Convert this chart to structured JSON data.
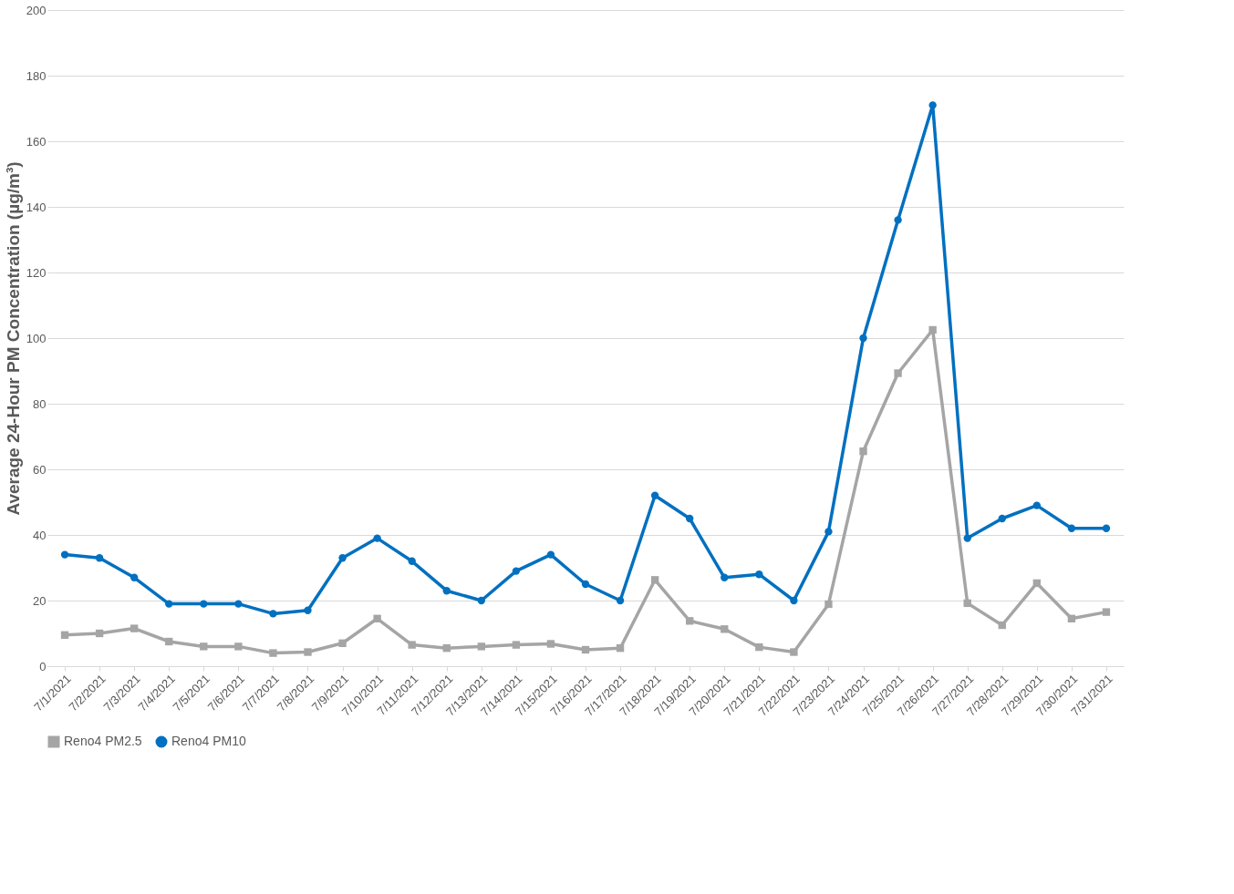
{
  "chart_data": {
    "type": "line",
    "ylabel": "Average 24-Hour PM Concentration (µg/m³)",
    "categories": [
      "7/1/2021",
      "7/2/2021",
      "7/3/2021",
      "7/4/2021",
      "7/5/2021",
      "7/6/2021",
      "7/7/2021",
      "7/8/2021",
      "7/9/2021",
      "7/10/2021",
      "7/11/2021",
      "7/12/2021",
      "7/13/2021",
      "7/14/2021",
      "7/15/2021",
      "7/16/2021",
      "7/17/2021",
      "7/18/2021",
      "7/19/2021",
      "7/20/2021",
      "7/21/2021",
      "7/22/2021",
      "7/23/2021",
      "7/24/2021",
      "7/25/2021",
      "7/26/2021",
      "7/27/2021",
      "7/28/2021",
      "7/29/2021",
      "7/30/2021",
      "7/31/2021"
    ],
    "series": [
      {
        "name": "Reno4 PM2.5",
        "color": "#a5a5a5",
        "marker": "square",
        "values": [
          9.5,
          10,
          11.5,
          7.5,
          6,
          6,
          4,
          4.3,
          7,
          14.5,
          6.5,
          5.5,
          6,
          6.5,
          6.8,
          5,
          5.5,
          26.3,
          13.8,
          11.3,
          5.8,
          4.3,
          18.9,
          65.5,
          89.3,
          102.5,
          19.2,
          12.5,
          25.3,
          14.5,
          16.5
        ]
      },
      {
        "name": "Reno4 PM10",
        "color": "#0070c0",
        "marker": "circle",
        "values": [
          34,
          33,
          27,
          19,
          19,
          19,
          16,
          17,
          33,
          39,
          32,
          23,
          20,
          29,
          34,
          25,
          20,
          52,
          45,
          27,
          28,
          20,
          41,
          100,
          136,
          171,
          39,
          45,
          49,
          42,
          42
        ]
      }
    ],
    "ylim": [
      0,
      200
    ],
    "yticks": [
      0,
      20,
      40,
      60,
      80,
      100,
      120,
      140,
      160,
      180,
      200
    ],
    "grid": "y",
    "legend": "bottom",
    "line_style": "solid"
  }
}
